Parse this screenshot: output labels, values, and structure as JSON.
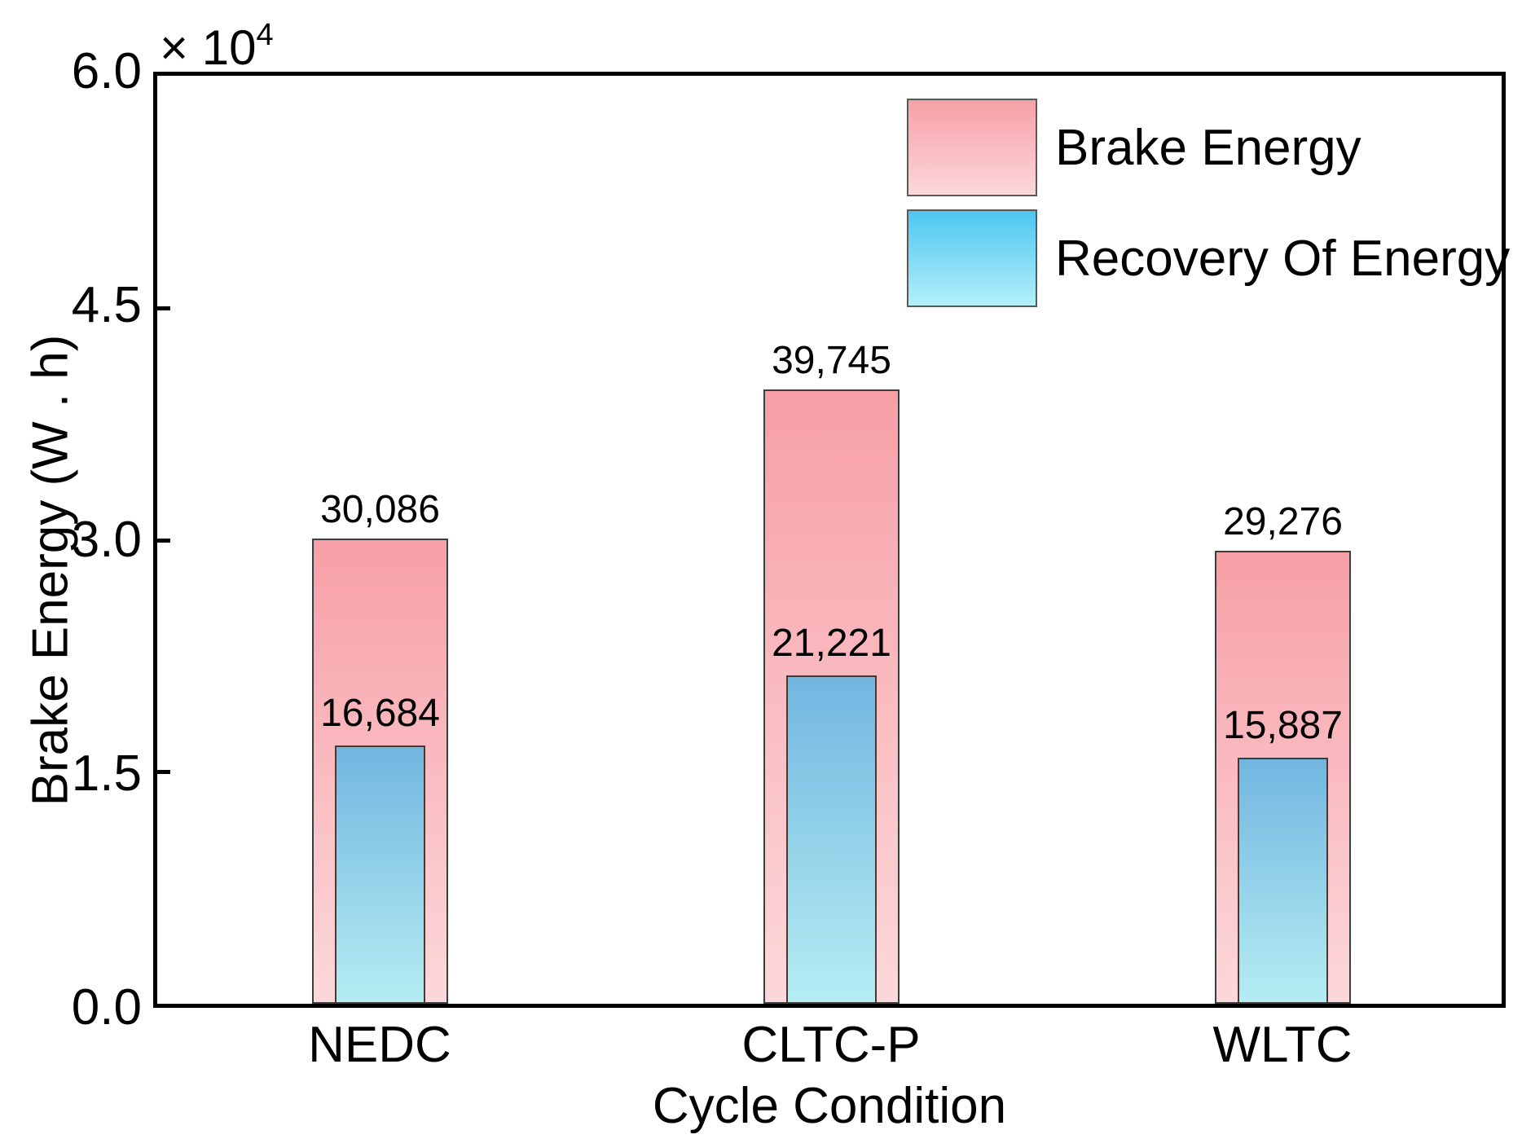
{
  "chart_data": {
    "type": "bar",
    "bar_style": "overlaid",
    "title": "",
    "xlabel": "Cycle Condition",
    "ylabel": "Brake Energy (W . h)",
    "y_offset": {
      "base": "× 10",
      "exponent": "4"
    },
    "categories": [
      "NEDC",
      "CLTC-P",
      "WLTC"
    ],
    "series": [
      {
        "name": "Brake Energy",
        "values": [
          30086,
          39745,
          29276
        ],
        "labels": [
          "30,086",
          "39,745",
          "29,276"
        ],
        "color_top": "#f79fa7",
        "color_bottom": "#fcd8da"
      },
      {
        "name": "Recovery Of Energy",
        "values": [
          16684,
          21221,
          15887
        ],
        "labels": [
          "16,684",
          "21,221",
          "15,887"
        ],
        "color_top": "#72b6e0",
        "color_bottom": "#b4edf2"
      }
    ],
    "legend_colors": [
      {
        "top": "#f7a0a8",
        "bottom": "#fbd7da"
      },
      {
        "top": "#4ec6f1",
        "bottom": "#b3f0f9"
      }
    ],
    "ylim": [
      0,
      60000
    ],
    "yticks": [
      0,
      15000,
      30000,
      45000,
      60000
    ],
    "ytick_labels": [
      "0.0",
      "1.5",
      "3.0",
      "4.5",
      "6.0"
    ],
    "legend_position": "top-right",
    "grid": false,
    "axis_color": "#000000",
    "bar_edge_color": "#3c3c3c"
  }
}
